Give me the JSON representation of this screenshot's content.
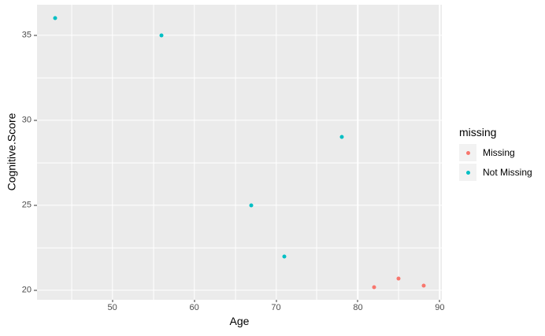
{
  "figure": {
    "background": "#FFFFFF",
    "panel_background": "#EBEBEB",
    "gridline_color": "#FFFFFF",
    "tick_mark_color": "#333333",
    "axis_text_color": "#4D4D4D",
    "axis_title_color": "#000000",
    "legend_key_background": "#F2F2F2"
  },
  "chart_data": {
    "type": "scatter",
    "title": "",
    "xlabel": "Age",
    "ylabel": "Cognitive.Score",
    "legend_title": "missing",
    "legend_position": "right",
    "grid": true,
    "xlim": [
      40.75,
      90.25
    ],
    "ylim": [
      19.47,
      36.79
    ],
    "x_major_ticks": [
      50,
      60,
      70,
      80,
      90
    ],
    "x_minor_ticks": [
      45,
      55,
      65,
      75,
      85
    ],
    "y_major_ticks": [
      20,
      25,
      30,
      35
    ],
    "y_minor_ticks": [
      22.5,
      27.5,
      32.5
    ],
    "series": [
      {
        "name": "Missing",
        "color": "#F8766D",
        "points": [
          {
            "x": 82,
            "y": 20.2
          },
          {
            "x": 85,
            "y": 20.7
          },
          {
            "x": 88,
            "y": 20.3
          }
        ]
      },
      {
        "name": "Not Missing",
        "color": "#00BFC4",
        "points": [
          {
            "x": 43,
            "y": 36
          },
          {
            "x": 56,
            "y": 35
          },
          {
            "x": 67,
            "y": 25
          },
          {
            "x": 71,
            "y": 22
          },
          {
            "x": 78,
            "y": 29
          }
        ]
      }
    ]
  }
}
